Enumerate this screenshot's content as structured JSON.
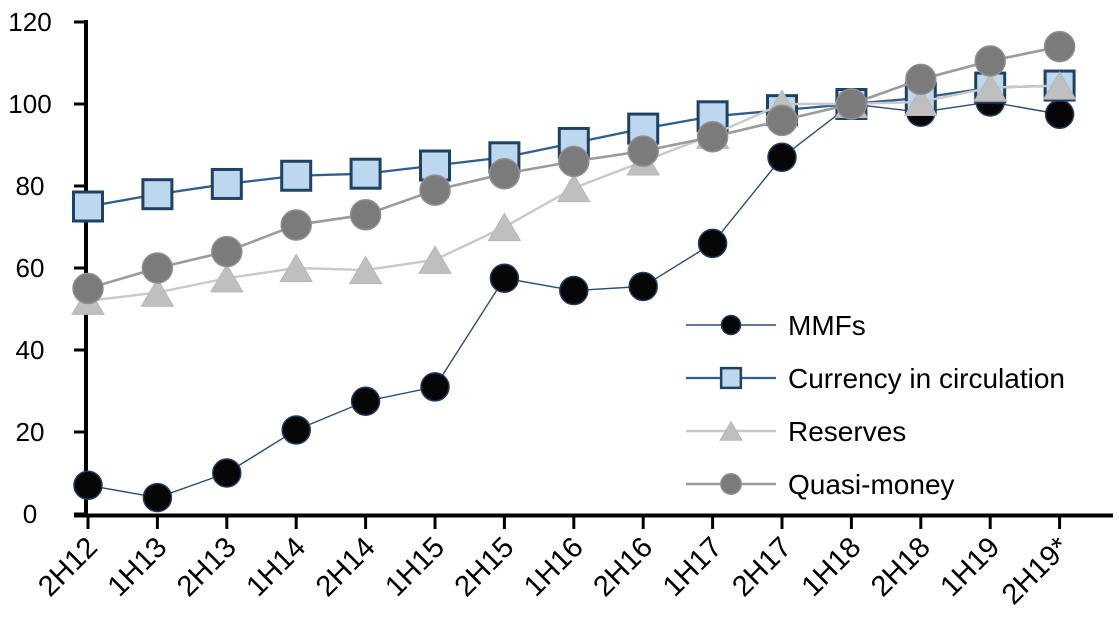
{
  "chart_data": {
    "type": "line",
    "title": "",
    "xlabel": "",
    "ylabel": "",
    "categories": [
      "2H12",
      "1H13",
      "2H13",
      "1H14",
      "2H14",
      "1H15",
      "2H15",
      "1H16",
      "2H16",
      "1H17",
      "2H17",
      "1H18",
      "2H18",
      "1H19",
      "2H19*"
    ],
    "series": [
      {
        "name": "MMFs",
        "marker": "circle",
        "line_color": "#2C4D76",
        "marker_fill": "#060606",
        "marker_stroke": "#1F3A60",
        "values": [
          7,
          4,
          10,
          20.5,
          27.5,
          31,
          57.5,
          54.5,
          55.5,
          66,
          87,
          100,
          98,
          100.5,
          97.5
        ]
      },
      {
        "name": "Currency in circulation",
        "marker": "square",
        "line_color": "#2E5E8C",
        "marker_fill": "#BDD7EE",
        "marker_stroke": "#1F4163",
        "values": [
          75,
          78,
          80.5,
          82.5,
          83,
          85,
          87,
          90.5,
          94,
          97,
          98.5,
          100,
          101.5,
          104,
          104.5
        ]
      },
      {
        "name": "Reserves",
        "marker": "triangle",
        "line_color": "#C9C9C9",
        "marker_fill": "#BFBFBF",
        "marker_stroke": "#B7B7B7",
        "values": [
          52,
          54,
          57.5,
          60,
          59.5,
          62,
          70,
          79.5,
          86,
          92.5,
          100,
          100,
          100.5,
          104,
          104.5
        ]
      },
      {
        "name": "Quasi-money",
        "marker": "circle",
        "line_color": "#9B9B9B",
        "marker_fill": "#7B7B7B",
        "marker_stroke": "#8F8F8F",
        "values": [
          55,
          60,
          64,
          70.5,
          73,
          79,
          83,
          86,
          88.5,
          92,
          96,
          100,
          106,
          110.5,
          114
        ]
      }
    ],
    "ylim": [
      0,
      120
    ],
    "yticks": [
      0,
      20,
      40,
      60,
      80,
      100,
      120
    ],
    "grid": "off",
    "legend_position": "inside-right",
    "axis_color": "#000000",
    "background_color": "#FFFFFF"
  }
}
